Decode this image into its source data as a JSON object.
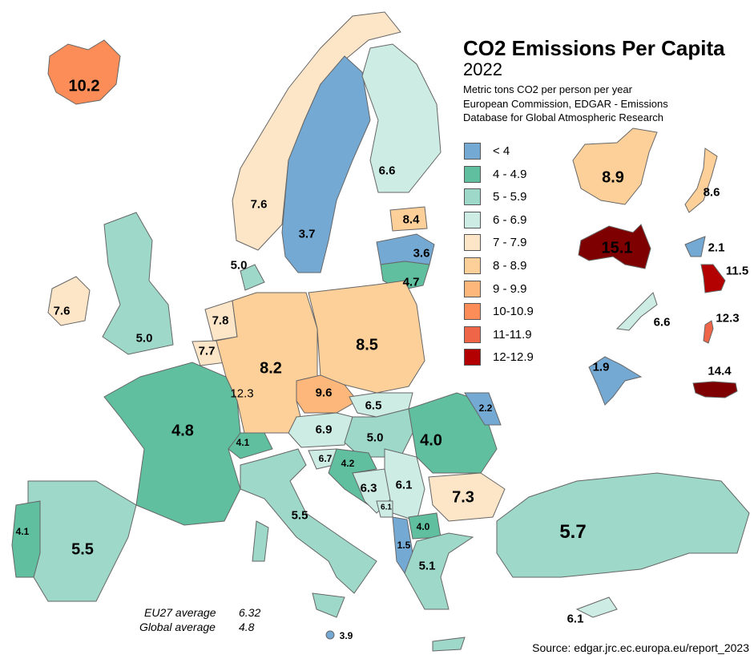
{
  "title": "CO2 Emissions Per Capita",
  "year": "2022",
  "subtitle": [
    "Metric tons CO2 per person per year",
    "European Commission, EDGAR - Emissions",
    "Database for Global Atmospheric Research"
  ],
  "legend": [
    {
      "label": "< 4",
      "color": "#74a9d4"
    },
    {
      "label": "4 - 4.9",
      "color": "#5fbf9f"
    },
    {
      "label": "5 - 5.9",
      "color": "#9dd8c8"
    },
    {
      "label": "6 - 6.9",
      "color": "#cdece4"
    },
    {
      "label": "7 - 7.9",
      "color": "#fde6c8"
    },
    {
      "label": "8 - 8.9",
      "color": "#fdd09a"
    },
    {
      "label": "9 - 9.9",
      "color": "#fdb77a"
    },
    {
      "label": "10-10.9",
      "color": "#fc8d59"
    },
    {
      "label": "11-11.9",
      "color": "#ef6548"
    },
    {
      "label": "12-12.9",
      "color": "#b30000"
    }
  ],
  "values": {
    "iceland": "10.2",
    "norway": "7.6",
    "sweden": "3.7",
    "finland": "6.6",
    "estonia": "8.4",
    "latvia": "3.6",
    "lithuania": "4.7",
    "denmark": "5.0",
    "ireland": "7.6",
    "uk": "5.0",
    "netherlands": "7.8",
    "belgium": "7.7",
    "luxembourg": "12.3",
    "germany": "8.2",
    "poland": "8.5",
    "czechia": "9.6",
    "slovakia": "6.5",
    "austria": "6.9",
    "hungary": "5.0",
    "switzerland": "4.1",
    "france": "4.8",
    "spain": "5.5",
    "portugal": "4.1",
    "italy": "5.5",
    "slovenia": "6.7",
    "croatia": "4.2",
    "bosnia": "6.3",
    "serbia": "6.1",
    "montenegro": "6.1",
    "romania": "4.0",
    "moldova": "2.2",
    "bulgaria": "7.3",
    "north_macedonia": "4.0",
    "albania": "1.5",
    "greece": "5.1",
    "turkey": "5.7",
    "cyprus": "6.1",
    "malta": "3.9",
    "china": "8.9",
    "japan": "8.6",
    "australia": "15.1",
    "north_korea": "2.1",
    "south_korea": "11.5",
    "new_zealand": "6.6",
    "taiwan": "12.3",
    "india": "1.9",
    "usa": "14.4"
  },
  "averages": [
    {
      "label": "EU27 average",
      "value": "6.32"
    },
    {
      "label": "Global average",
      "value": "4.8"
    }
  ],
  "source": "Source: edgar.jrc.ec.europa.eu/report_2023"
}
